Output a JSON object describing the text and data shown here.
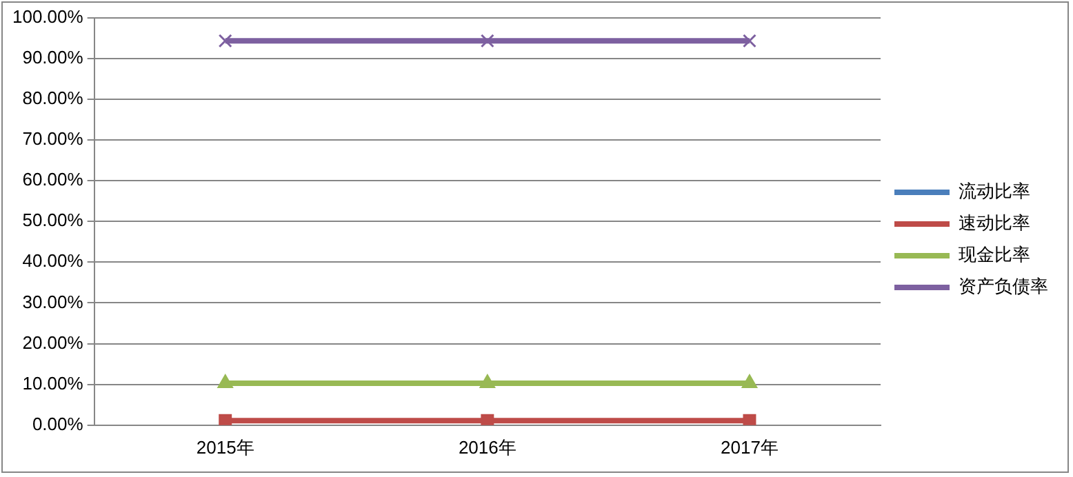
{
  "chart_data": {
    "type": "line",
    "categories": [
      "2015年",
      "2016年",
      "2017年"
    ],
    "series": [
      {
        "name": "流动比率",
        "color": "#4a7ebb",
        "marker": "diamond",
        "values": [
          null,
          null,
          null
        ]
      },
      {
        "name": "速动比率",
        "color": "#be4b48",
        "marker": "square",
        "values": [
          1.1,
          1.1,
          1.1
        ]
      },
      {
        "name": "现金比率",
        "color": "#98b954",
        "marker": "triangle",
        "values": [
          10.3,
          10.3,
          10.3
        ]
      },
      {
        "name": "资产负债率",
        "color": "#7d60a0",
        "marker": "cross",
        "values": [
          94.3,
          94.3,
          94.3
        ]
      }
    ],
    "ylim": [
      0,
      100
    ],
    "yticks": [
      {
        "value": 0,
        "label": "0.00%"
      },
      {
        "value": 10,
        "label": "10.00%"
      },
      {
        "value": 20,
        "label": "20.00%"
      },
      {
        "value": 30,
        "label": "30.00%"
      },
      {
        "value": 40,
        "label": "40.00%"
      },
      {
        "value": 50,
        "label": "50.00%"
      },
      {
        "value": 60,
        "label": "60.00%"
      },
      {
        "value": 70,
        "label": "70.00%"
      },
      {
        "value": 80,
        "label": "80.00%"
      },
      {
        "value": 90,
        "label": "90.00%"
      },
      {
        "value": 100,
        "label": "100.00%"
      }
    ],
    "grid": "y",
    "legend": "right",
    "line_style": "solid"
  }
}
